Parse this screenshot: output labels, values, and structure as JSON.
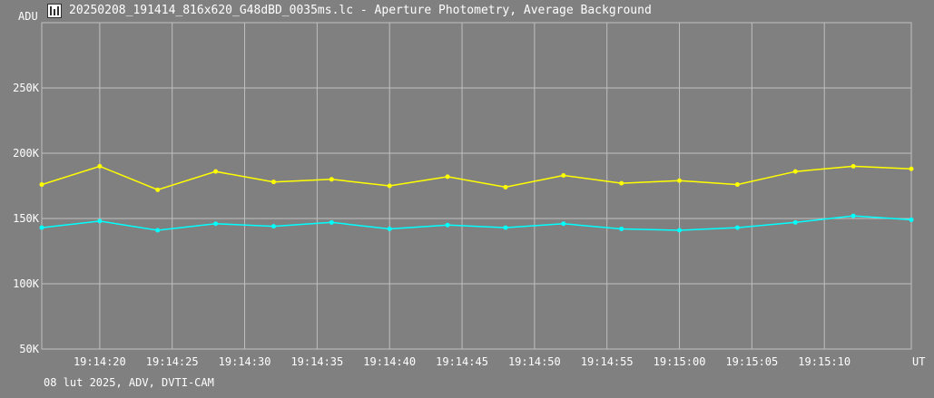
{
  "window": {
    "title": "20250208_191414_816x620_G48dBD_0035ms.lc - Aperture Photometry, Average Background",
    "icon": "lightcurve-app-icon"
  },
  "footer": {
    "text": "08 lut 2025, ADV, DVTI-CAM"
  },
  "colors": {
    "background": "#808080",
    "grid": "#bfbfbf",
    "series_1": "#ffff00",
    "series_2": "#00ffff"
  },
  "chart_data": {
    "type": "line",
    "title": "",
    "xlabel": "UT",
    "ylabel": "ADU",
    "ylim": [
      50000,
      300000
    ],
    "xlim": [
      "19:14:16.0",
      "19:15:16.0"
    ],
    "x_ticks": [
      "19:14:20",
      "19:14:25",
      "19:14:30",
      "19:14:35",
      "19:14:40",
      "19:14:45",
      "19:14:50",
      "19:14:55",
      "19:15:00",
      "19:15:05",
      "19:15:10"
    ],
    "y_ticks": [
      "50K",
      "100K",
      "150K",
      "200K",
      "250K"
    ],
    "grid": true,
    "markers": true,
    "series": [
      {
        "color": "#ffff00",
        "x": [
          "19:14:16",
          "19:14:20",
          "19:14:24",
          "19:14:28",
          "19:14:32",
          "19:14:36",
          "19:14:40",
          "19:14:44",
          "19:14:48",
          "19:14:52",
          "19:14:56",
          "19:15:00",
          "19:15:04",
          "19:15:08",
          "19:15:12",
          "19:15:16"
        ],
        "values": [
          176000,
          190000,
          172000,
          186000,
          178000,
          180000,
          175000,
          182000,
          174000,
          183000,
          177000,
          179000,
          176000,
          186000,
          190000,
          188000
        ]
      },
      {
        "color": "#00ffff",
        "x": [
          "19:14:16",
          "19:14:20",
          "19:14:24",
          "19:14:28",
          "19:14:32",
          "19:14:36",
          "19:14:40",
          "19:14:44",
          "19:14:48",
          "19:14:52",
          "19:14:56",
          "19:15:00",
          "19:15:04",
          "19:15:08",
          "19:15:12",
          "19:15:16"
        ],
        "values": [
          143000,
          148000,
          141000,
          146000,
          144000,
          147000,
          142000,
          145000,
          143000,
          146000,
          142000,
          141000,
          143000,
          147000,
          152000,
          149000
        ]
      }
    ]
  }
}
